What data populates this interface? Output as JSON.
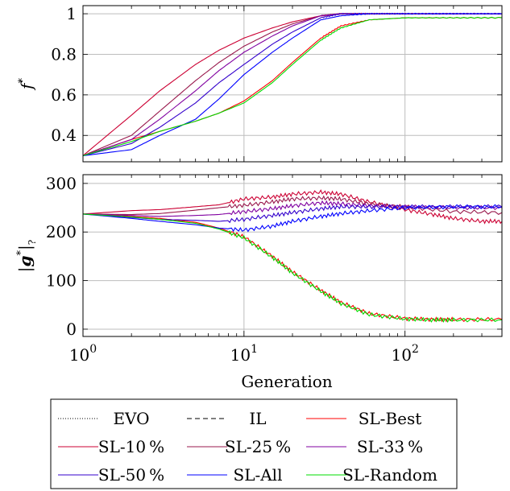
{
  "chart_data": [
    {
      "type": "line",
      "ylabel": "f*",
      "xscale": "log",
      "xlim": [
        1,
        400
      ],
      "ylim": [
        0.27,
        1.04
      ],
      "yticks": [
        0.4,
        0.6,
        0.8,
        1
      ],
      "ytick_labels": [
        "0.4",
        "0.6",
        "0.8",
        "1"
      ],
      "grid": true,
      "series": [
        {
          "name": "SL-Best",
          "color": "#ff0000",
          "style": "solid",
          "x": [
            1,
            2,
            3,
            5,
            7,
            10,
            15,
            20,
            30,
            40,
            60,
            100,
            200,
            400
          ],
          "y": [
            0.3,
            0.38,
            0.42,
            0.47,
            0.51,
            0.57,
            0.67,
            0.76,
            0.88,
            0.94,
            0.97,
            0.98,
            0.98,
            0.98
          ]
        },
        {
          "name": "SL-10 %",
          "color": "#cc0033",
          "style": "solid",
          "x": [
            1,
            2,
            3,
            5,
            7,
            10,
            15,
            20,
            30,
            40,
            60,
            100,
            200,
            400
          ],
          "y": [
            0.3,
            0.5,
            0.62,
            0.75,
            0.82,
            0.88,
            0.93,
            0.96,
            0.99,
            1.0,
            1.0,
            1.0,
            1.0,
            1.0
          ]
        },
        {
          "name": "SL-25 %",
          "color": "#99194d",
          "style": "solid",
          "x": [
            1,
            2,
            3,
            5,
            7,
            10,
            15,
            20,
            30,
            40,
            60,
            100,
            200,
            400
          ],
          "y": [
            0.3,
            0.4,
            0.52,
            0.67,
            0.76,
            0.84,
            0.91,
            0.95,
            0.99,
            1.0,
            1.0,
            1.0,
            1.0,
            1.0
          ]
        },
        {
          "name": "SL-33 %",
          "color": "#8000a0",
          "style": "solid",
          "x": [
            1,
            2,
            3,
            5,
            7,
            10,
            15,
            20,
            30,
            40,
            60,
            100,
            200,
            400
          ],
          "y": [
            0.3,
            0.38,
            0.48,
            0.62,
            0.72,
            0.81,
            0.89,
            0.94,
            0.99,
            1.0,
            1.0,
            1.0,
            1.0,
            1.0
          ]
        },
        {
          "name": "SL-50 %",
          "color": "#3300cc",
          "style": "solid",
          "x": [
            1,
            2,
            3,
            5,
            7,
            10,
            15,
            20,
            30,
            40,
            60,
            100,
            200,
            400
          ],
          "y": [
            0.3,
            0.36,
            0.44,
            0.56,
            0.66,
            0.75,
            0.85,
            0.91,
            0.98,
            1.0,
            1.0,
            1.0,
            1.0,
            1.0
          ]
        },
        {
          "name": "SL-All",
          "color": "#0000ff",
          "style": "solid",
          "x": [
            1,
            2,
            3,
            5,
            7,
            10,
            15,
            20,
            30,
            40,
            60,
            100,
            200,
            400
          ],
          "y": [
            0.3,
            0.33,
            0.4,
            0.48,
            0.58,
            0.7,
            0.81,
            0.88,
            0.97,
            0.99,
            1.0,
            1.0,
            1.0,
            1.0
          ]
        },
        {
          "name": "SL-Random",
          "color": "#00dd00",
          "style": "solid",
          "x": [
            1,
            2,
            3,
            5,
            7,
            10,
            15,
            20,
            30,
            40,
            60,
            100,
            200,
            400
          ],
          "y": [
            0.3,
            0.37,
            0.42,
            0.47,
            0.51,
            0.56,
            0.66,
            0.75,
            0.87,
            0.93,
            0.97,
            0.98,
            0.98,
            0.98
          ]
        }
      ]
    },
    {
      "type": "line",
      "ylabel": "|g*|?",
      "xlabel": "Generation",
      "xscale": "log",
      "xlim": [
        1,
        400
      ],
      "ylim": [
        -15,
        318
      ],
      "yticks": [
        0,
        100,
        200,
        300
      ],
      "ytick_labels": [
        "0",
        "100",
        "200",
        "300"
      ],
      "xticks": [
        1,
        10,
        100
      ],
      "xtick_labels": [
        {
          "base": "10",
          "exp": "0"
        },
        {
          "base": "10",
          "exp": "1"
        },
        {
          "base": "10",
          "exp": "2"
        }
      ],
      "grid": true,
      "series": [
        {
          "name": "SL-Best",
          "color": "#ff0000",
          "style": "solid",
          "x": [
            1,
            2,
            3,
            5,
            7,
            10,
            15,
            20,
            30,
            40,
            60,
            100,
            150,
            200,
            400
          ],
          "y": [
            237,
            232,
            228,
            220,
            208,
            190,
            150,
            118,
            80,
            55,
            32,
            22,
            20,
            20,
            20
          ]
        },
        {
          "name": "SL-10 %",
          "color": "#cc0033",
          "style": "solid",
          "x": [
            1,
            2,
            3,
            5,
            7,
            10,
            15,
            20,
            30,
            40,
            60,
            100,
            150,
            200,
            300,
            400
          ],
          "y": [
            237,
            244,
            246,
            252,
            256,
            268,
            272,
            278,
            282,
            278,
            262,
            246,
            236,
            228,
            222,
            222
          ]
        },
        {
          "name": "SL-25 %",
          "color": "#99194d",
          "style": "solid",
          "x": [
            1,
            2,
            3,
            5,
            7,
            10,
            15,
            20,
            30,
            40,
            60,
            100,
            200,
            400
          ],
          "y": [
            237,
            236,
            238,
            245,
            250,
            255,
            262,
            268,
            270,
            268,
            258,
            252,
            242,
            240
          ]
        },
        {
          "name": "SL-33 %",
          "color": "#8000a0",
          "style": "solid",
          "x": [
            1,
            2,
            3,
            5,
            7,
            10,
            15,
            20,
            30,
            40,
            60,
            100,
            200,
            400
          ],
          "y": [
            237,
            234,
            232,
            234,
            236,
            242,
            248,
            254,
            260,
            258,
            254,
            252,
            250,
            250
          ]
        },
        {
          "name": "SL-50 %",
          "color": "#3300cc",
          "style": "solid",
          "x": [
            1,
            2,
            3,
            5,
            7,
            10,
            15,
            20,
            30,
            40,
            60,
            100,
            200,
            400
          ],
          "y": [
            237,
            230,
            226,
            224,
            222,
            226,
            234,
            240,
            248,
            252,
            252,
            252,
            252,
            252
          ]
        },
        {
          "name": "SL-All",
          "color": "#0000ff",
          "style": "solid",
          "x": [
            1,
            2,
            3,
            5,
            7,
            10,
            15,
            20,
            30,
            40,
            60,
            100,
            200,
            400
          ],
          "y": [
            237,
            228,
            222,
            215,
            208,
            204,
            212,
            222,
            232,
            238,
            244,
            250,
            252,
            252
          ]
        },
        {
          "name": "SL-Random",
          "color": "#00dd00",
          "style": "solid",
          "x": [
            1,
            2,
            3,
            5,
            7,
            10,
            15,
            20,
            30,
            40,
            60,
            100,
            150,
            200,
            400
          ],
          "y": [
            237,
            231,
            226,
            218,
            206,
            188,
            148,
            116,
            78,
            53,
            30,
            21,
            19,
            19,
            19
          ]
        }
      ]
    }
  ],
  "legend": {
    "placement": "bottom",
    "items": [
      {
        "label": "EVO",
        "color": "#000000",
        "style": "dotted"
      },
      {
        "label": "IL",
        "color": "#000000",
        "style": "dashed"
      },
      {
        "label": "SL-Best",
        "color": "#ff0000",
        "style": "solid"
      },
      {
        "label": "SL-10 %",
        "color": "#cc0033",
        "style": "solid"
      },
      {
        "label": "SL-25 %",
        "color": "#99194d",
        "style": "solid"
      },
      {
        "label": "SL-33 %",
        "color": "#8000a0",
        "style": "solid"
      },
      {
        "label": "SL-50 %",
        "color": "#3300cc",
        "style": "solid"
      },
      {
        "label": "SL-All",
        "color": "#0000ff",
        "style": "solid"
      },
      {
        "label": "SL-Random",
        "color": "#00dd00",
        "style": "solid"
      }
    ]
  }
}
